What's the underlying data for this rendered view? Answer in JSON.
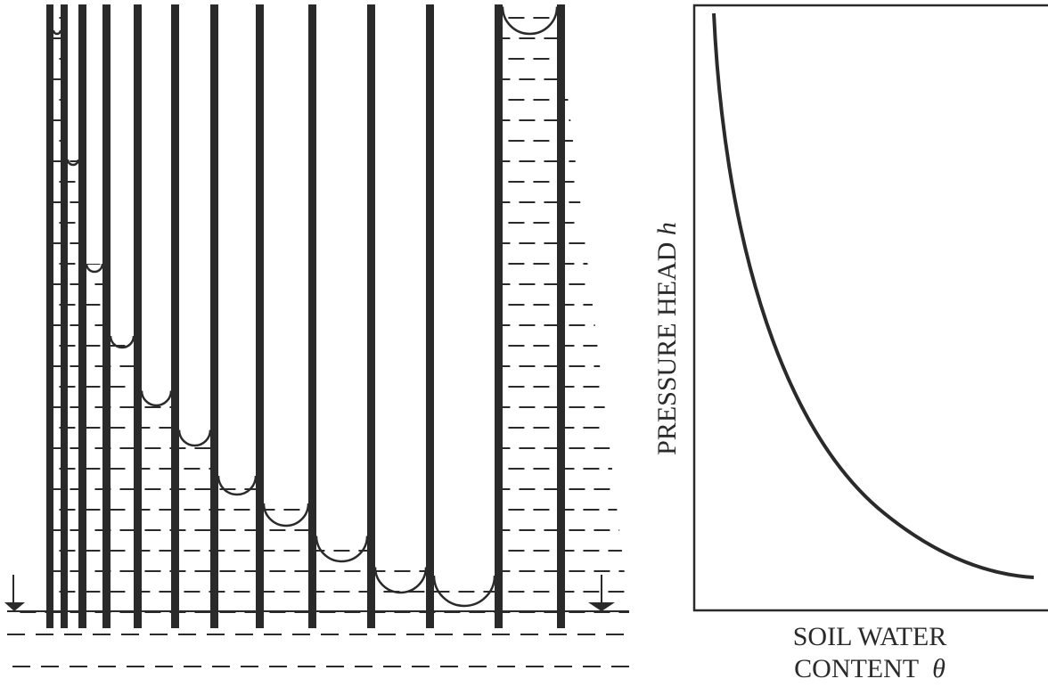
{
  "y_axis": {
    "label": "PRESSURE HEAD",
    "symbol": "h"
  },
  "x_axis": {
    "line1": "SOIL WATER",
    "line2": "CONTENT",
    "symbol": "θ"
  }
}
